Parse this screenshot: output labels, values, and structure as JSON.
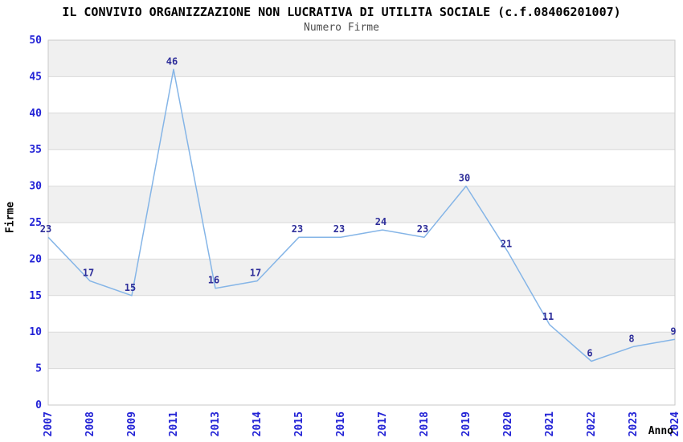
{
  "chart_data": {
    "type": "line",
    "title": "IL CONVIVIO ORGANIZZAZIONE NON LUCRATIVA DI UTILITA SOCIALE (c.f.08406201007)",
    "subtitle": "Numero Firme",
    "xlabel": "Anno",
    "ylabel": "Firme",
    "categories": [
      "2007",
      "2008",
      "2009",
      "2011",
      "2013",
      "2014",
      "2015",
      "2016",
      "2017",
      "2018",
      "2019",
      "2020",
      "2021",
      "2022",
      "2023",
      "2024"
    ],
    "values": [
      23,
      17,
      15,
      46,
      16,
      17,
      23,
      23,
      24,
      23,
      30,
      21,
      11,
      6,
      8,
      9
    ],
    "ylim": [
      0,
      50
    ],
    "ytick_step": 5,
    "grid": true,
    "band_alternating": true,
    "legend_position": "none",
    "colors": {
      "line": "#85b5e7",
      "data_label": "#2e2e9a",
      "tick_label": "#2323d6",
      "band": "#f0f0f0",
      "grid": "#d9d9d9",
      "border": "#c9c9c9",
      "title": "#000000",
      "subtitle": "#4d4d4d"
    }
  }
}
